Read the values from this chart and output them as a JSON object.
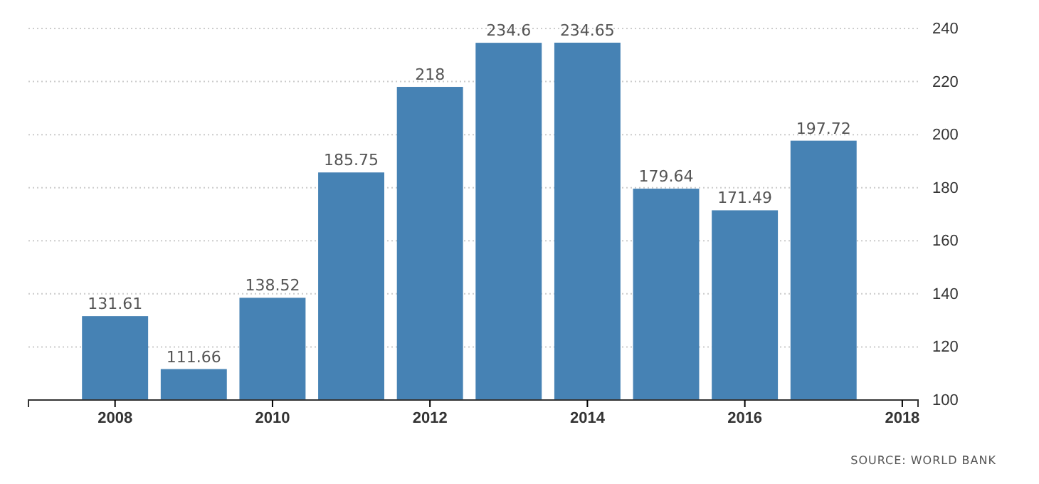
{
  "chart_data": {
    "type": "bar",
    "x": [
      2008,
      2009,
      2010,
      2011,
      2012,
      2013,
      2014,
      2015,
      2016,
      2017
    ],
    "values": [
      131.61,
      111.66,
      138.52,
      185.75,
      218,
      234.6,
      234.65,
      179.64,
      171.49,
      197.72
    ],
    "color": "#4682b4",
    "data_labels": true,
    "grid": "y",
    "xlim": [
      2006.9,
      2018.2
    ],
    "xticks": [
      2008,
      2010,
      2012,
      2014,
      2016,
      2018
    ],
    "ylim": [
      100,
      240
    ],
    "yticks": [
      100,
      120,
      140,
      160,
      180,
      200,
      220,
      240
    ],
    "annotations": [
      "SOURCE: WORLD BANK"
    ]
  }
}
